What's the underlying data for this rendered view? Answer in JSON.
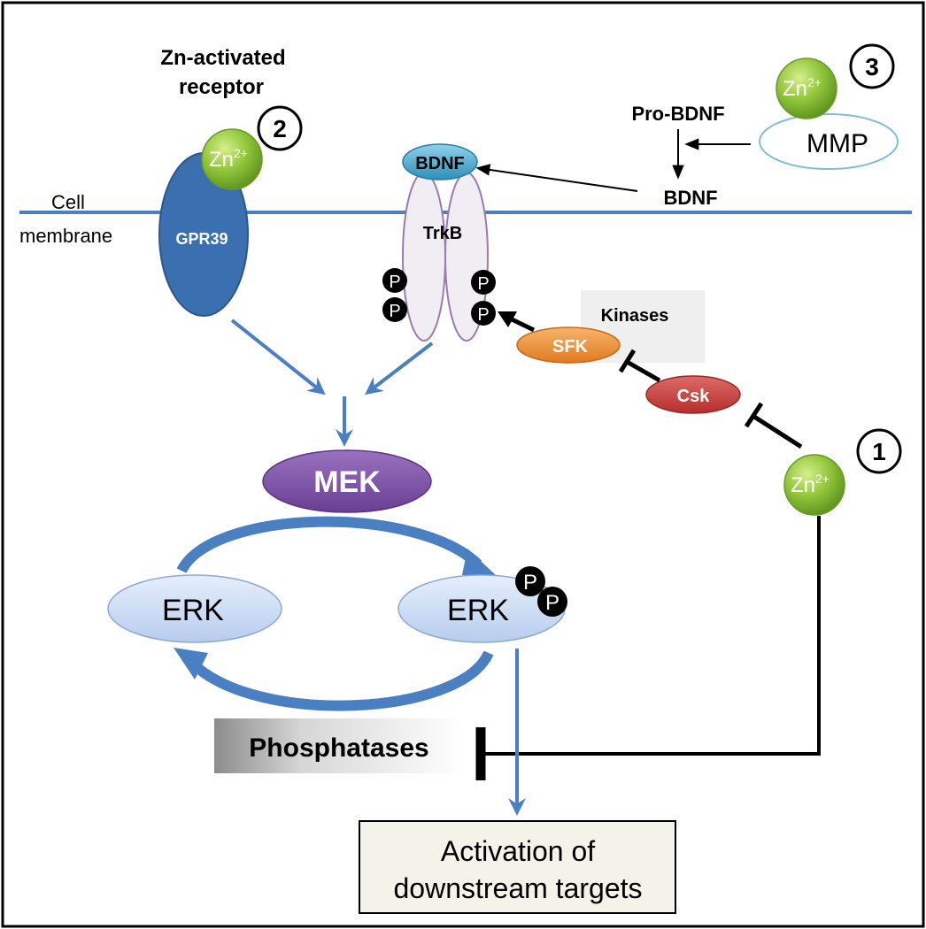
{
  "title": {
    "line1": "Zn-activated",
    "line2": "receptor"
  },
  "membrane": {
    "line1": "Cell",
    "line2": "membrane"
  },
  "badges": {
    "one": "1",
    "two": "2",
    "three": "3"
  },
  "zinc": {
    "base": "Zn",
    "charge": "2+"
  },
  "labels": {
    "gpr39": "GPR39",
    "bdnf_receptor": "BDNF",
    "trkb": "TrkB",
    "pro_bdnf": "Pro-BDNF",
    "bdnf": "BDNF",
    "mmp": "MMP",
    "kinases": "Kinases",
    "sfk": "SFK",
    "csk": "Csk",
    "mek": "MEK",
    "erk_left": "ERK",
    "erk_right": "ERK",
    "phospho": "P",
    "phosphatases": "Phosphatases",
    "downstream_line1": "Activation of",
    "downstream_line2": "downstream targets"
  },
  "colors": {
    "membrane": "#4a7fc1",
    "blue_arrow": "#4a7fc1",
    "gpr39": "#3a6fb0",
    "zinc": "#8fc43a",
    "bdnf": "#3fa6cc",
    "sfk": "#f0923a",
    "csk": "#c8403e",
    "mek": "#7b4fa2",
    "erk": "#c9dcf3",
    "phospho": "#000000"
  }
}
